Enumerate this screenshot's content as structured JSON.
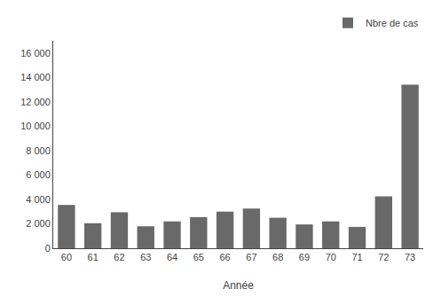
{
  "chart_data": {
    "type": "bar",
    "categories": [
      "60",
      "61",
      "62",
      "63",
      "64",
      "65",
      "66",
      "67",
      "68",
      "69",
      "70",
      "71",
      "72",
      "73"
    ],
    "series": [
      {
        "name": "Nbre de cas",
        "color": "#696969",
        "values": [
          3550,
          2050,
          2950,
          1800,
          2200,
          2550,
          3000,
          3250,
          2500,
          1950,
          2200,
          1750,
          4250,
          13400
        ]
      }
    ],
    "xlabel": "Année",
    "ylim": [
      0,
      17000
    ],
    "yticks": [
      0,
      {
        "value": 2000,
        "label": "2 000"
      },
      {
        "value": 4000,
        "label": "4 000"
      },
      {
        "value": 6000,
        "label": "6 000"
      },
      {
        "value": 8000,
        "label": "8 000"
      },
      {
        "value": 10000,
        "label": "10 000"
      },
      {
        "value": 12000,
        "label": "12 000"
      },
      {
        "value": 14000,
        "label": "14 000"
      },
      {
        "value": 16000,
        "label": "16 000"
      }
    ],
    "grid": false,
    "legend": "upper right"
  }
}
